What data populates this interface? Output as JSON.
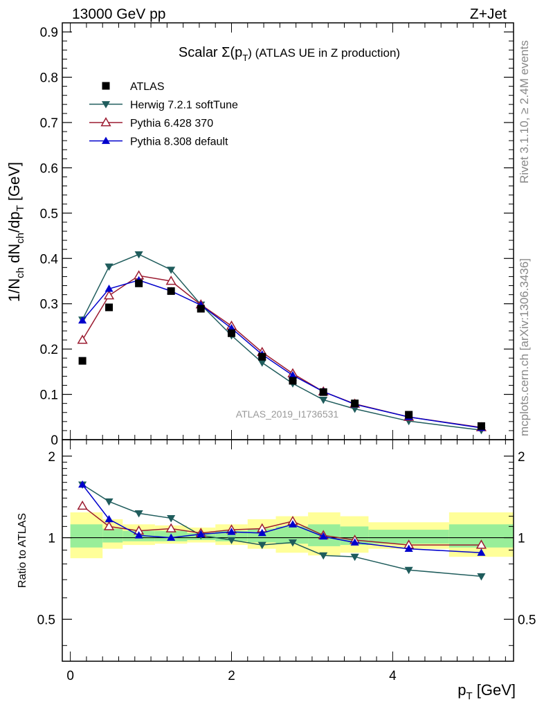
{
  "header": {
    "left": "13000 GeV pp",
    "right": "Z+Jet"
  },
  "side_labels": {
    "rivet": "Rivet 3.1.10, ≥ 2.4M events",
    "mcplots": "mcplots.cern.ch [arXiv:1306.3436]"
  },
  "main_plot": {
    "title_prefix": "Scalar Σ(p",
    "title_sub": "T",
    "title_suffix": ") (ATLAS UE in Z production)",
    "ylabel_parts": [
      "1/N",
      "ch",
      " dN",
      "ch",
      "/dp",
      "T",
      " [GeV]"
    ],
    "watermark": "ATLAS_2019_I1736531"
  },
  "ratio_plot": {
    "ylabel": "Ratio to ATLAS"
  },
  "x_axis": {
    "label_main": "p",
    "label_sub": "T",
    "label_unit": " [GeV]",
    "ticks": [
      "0",
      "2",
      "4"
    ]
  },
  "colors": {
    "atlas": "#000000",
    "herwig": "#1f5c5c",
    "pythia6": "#9b1b30",
    "pythia8": "#0000cc",
    "band_inner": "#99ee99",
    "band_outer": "#ffff99"
  },
  "chart_data": [
    {
      "type": "scatter",
      "title": "Scalar Σ(pT) (ATLAS UE in Z production)",
      "xlabel": "pT [GeV]",
      "ylabel": "1/Nch dNch/dpT [GeV]",
      "xlim": [
        -0.1,
        5.5
      ],
      "ylim": [
        0,
        0.92
      ],
      "y_ticks": [
        "0",
        "0.1",
        "0.2",
        "0.3",
        "0.4",
        "0.5",
        "0.6",
        "0.7",
        "0.8",
        "0.9"
      ],
      "legend_position": "top-left",
      "x": [
        0.15,
        0.48,
        0.85,
        1.25,
        1.62,
        2.0,
        2.38,
        2.76,
        3.14,
        3.53,
        4.2,
        5.1
      ],
      "series": [
        {
          "name": "ATLAS",
          "marker": "square",
          "values": [
            0.174,
            0.292,
            0.345,
            0.328,
            0.289,
            0.235,
            0.183,
            0.13,
            0.105,
            0.08,
            0.055,
            0.03
          ]
        },
        {
          "name": "Herwig 7.2.1 softTune",
          "marker": "triangle-down",
          "values": [
            0.265,
            0.382,
            0.409,
            0.375,
            0.298,
            0.23,
            0.17,
            0.124,
            0.088,
            0.068,
            0.041,
            0.021
          ]
        },
        {
          "name": "Pythia 6.428 370",
          "marker": "triangle-up-open",
          "values": [
            0.22,
            0.318,
            0.362,
            0.35,
            0.298,
            0.251,
            0.193,
            0.146,
            0.106,
            0.079,
            0.05,
            0.027
          ]
        },
        {
          "name": "Pythia 8.308 default",
          "marker": "triangle-up",
          "values": [
            0.263,
            0.333,
            0.352,
            0.328,
            0.297,
            0.246,
            0.188,
            0.142,
            0.106,
            0.078,
            0.05,
            0.026
          ]
        }
      ]
    },
    {
      "type": "scatter",
      "ylabel": "Ratio to ATLAS",
      "xlim": [
        -0.1,
        5.5
      ],
      "ylim": [
        0.35,
        2.3
      ],
      "y_ticks": [
        "0.5",
        "1",
        "2"
      ],
      "y_scale": "log",
      "x": [
        0.15,
        0.48,
        0.85,
        1.25,
        1.62,
        2.0,
        2.38,
        2.76,
        3.14,
        3.53,
        4.2,
        5.1
      ],
      "bins": [
        [
          0.0,
          0.4
        ],
        [
          0.4,
          0.65
        ],
        [
          0.65,
          1.05
        ],
        [
          1.05,
          1.45
        ],
        [
          1.45,
          1.8
        ],
        [
          1.8,
          2.2
        ],
        [
          2.2,
          2.55
        ],
        [
          2.55,
          2.95
        ],
        [
          2.95,
          3.35
        ],
        [
          3.35,
          3.7
        ],
        [
          3.7,
          4.7
        ],
        [
          4.7,
          5.5
        ]
      ],
      "band_inner": [
        [
          0.92,
          1.12
        ],
        [
          0.96,
          1.08
        ],
        [
          0.97,
          1.06
        ],
        [
          0.97,
          1.06
        ],
        [
          0.98,
          1.04
        ],
        [
          0.97,
          1.06
        ],
        [
          0.96,
          1.08
        ],
        [
          0.95,
          1.1
        ],
        [
          0.93,
          1.12
        ],
        [
          0.94,
          1.1
        ],
        [
          0.95,
          1.07
        ],
        [
          0.92,
          1.12
        ]
      ],
      "band_outer": [
        [
          0.84,
          1.24
        ],
        [
          0.91,
          1.17
        ],
        [
          0.94,
          1.12
        ],
        [
          0.95,
          1.11
        ],
        [
          0.96,
          1.09
        ],
        [
          0.94,
          1.12
        ],
        [
          0.91,
          1.17
        ],
        [
          0.88,
          1.2
        ],
        [
          0.86,
          1.24
        ],
        [
          0.88,
          1.2
        ],
        [
          0.91,
          1.14
        ],
        [
          0.85,
          1.24
        ]
      ],
      "series": [
        {
          "name": "Herwig 7.2.1 softTune",
          "marker": "triangle-down",
          "values": [
            1.57,
            1.36,
            1.23,
            1.18,
            1.02,
            0.98,
            0.94,
            0.96,
            0.86,
            0.85,
            0.76,
            0.72
          ]
        },
        {
          "name": "Pythia 6.428 370",
          "marker": "triangle-up-open",
          "values": [
            1.31,
            1.1,
            1.06,
            1.08,
            1.04,
            1.07,
            1.08,
            1.15,
            1.02,
            0.98,
            0.94,
            0.94
          ]
        },
        {
          "name": "Pythia 8.308 default",
          "marker": "triangle-up",
          "values": [
            1.57,
            1.17,
            1.02,
            1.0,
            1.03,
            1.05,
            1.04,
            1.12,
            1.01,
            0.96,
            0.91,
            0.88
          ]
        }
      ]
    }
  ]
}
